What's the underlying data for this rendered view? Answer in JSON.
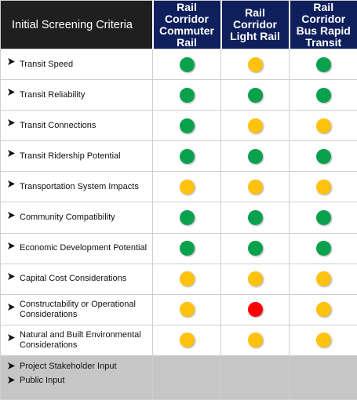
{
  "header": {
    "criteria_title": "Initial Screening Criteria",
    "options": [
      {
        "line1": "Rail Corridor",
        "line2": "Commuter",
        "line3": "Rail"
      },
      {
        "line1": "Rail Corridor",
        "line2": "Light Rail",
        "line3": ""
      },
      {
        "line1": "Rail Corridor",
        "line2": "Bus Rapid",
        "line3": "Transit"
      }
    ]
  },
  "colors": {
    "header_criteria_bg": "#1f1f1f",
    "header_option_bg": "#0f1f5c",
    "green": "#0aa14d",
    "yellow": "#ffc20e",
    "red": "#ff0000",
    "footer_bg": "#c6c6c6"
  },
  "criteria": [
    {
      "label": "Transit Speed",
      "ratings": [
        "green",
        "yellow",
        "green"
      ]
    },
    {
      "label": "Transit Reliability",
      "ratings": [
        "green",
        "green",
        "green"
      ]
    },
    {
      "label": "Transit Connections",
      "ratings": [
        "green",
        "yellow",
        "yellow"
      ]
    },
    {
      "label": "Transit Ridership Potential",
      "ratings": [
        "green",
        "green",
        "green"
      ]
    },
    {
      "label": "Transportation System Impacts",
      "ratings": [
        "yellow",
        "yellow",
        "yellow"
      ]
    },
    {
      "label": "Community Compatibility",
      "ratings": [
        "green",
        "green",
        "green"
      ]
    },
    {
      "label": "Economic Development Potential",
      "ratings": [
        "green",
        "green",
        "green"
      ]
    },
    {
      "label": "Capital Cost Considerations",
      "ratings": [
        "yellow",
        "yellow",
        "yellow"
      ]
    },
    {
      "label": "Constructability or Operational Considerations",
      "ratings": [
        "yellow",
        "red",
        "yellow"
      ]
    },
    {
      "label": "Natural and Built Environmental Considerations",
      "ratings": [
        "yellow",
        "yellow",
        "yellow"
      ]
    }
  ],
  "footer": {
    "items": [
      "Project Stakeholder Input",
      "Public Input"
    ]
  }
}
